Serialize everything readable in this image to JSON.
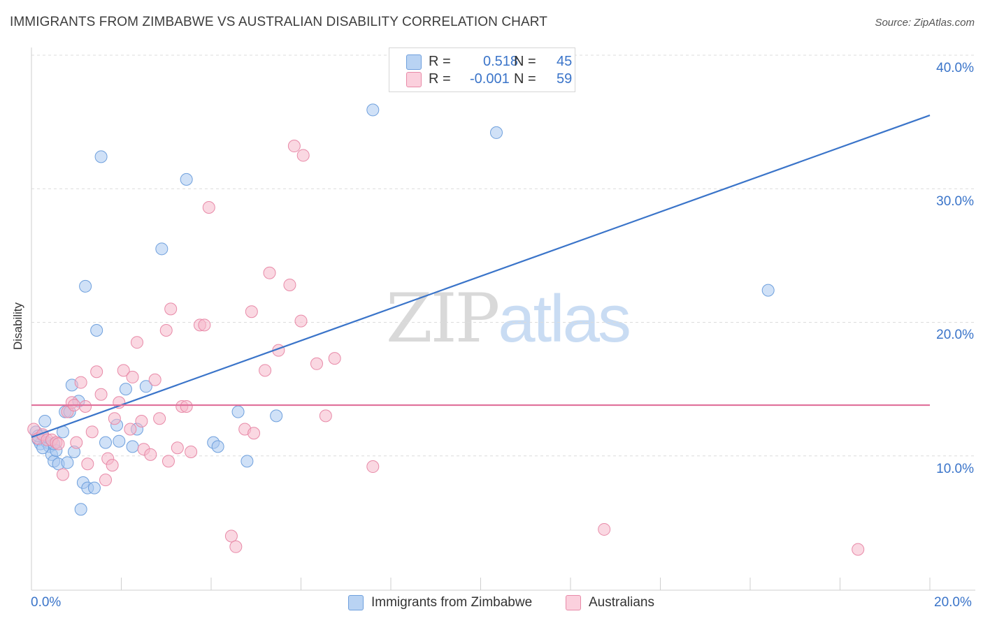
{
  "title": "IMMIGRANTS FROM ZIMBABWE VS AUSTRALIAN DISABILITY CORRELATION CHART",
  "source": "Source: ZipAtlas.com",
  "watermark": {
    "zip": "ZIP",
    "atlas": "atlas"
  },
  "legend": {
    "rows": [
      {
        "r_label": "R =",
        "r_value": "0.518",
        "n_label": "N =",
        "n_value": "45",
        "color": "#a9c8f0"
      },
      {
        "r_label": "R =",
        "r_value": "-0.001",
        "n_label": "N =",
        "n_value": "59",
        "color": "#f5b8cb"
      }
    ]
  },
  "bottom_legend": [
    {
      "label": "Immigrants from Zimbabwe",
      "color": "#a9c8f0"
    },
    {
      "label": "Australians",
      "color": "#f5b8cb"
    }
  ],
  "chart_data": {
    "type": "scatter",
    "title": "IMMIGRANTS FROM ZIMBABWE VS AUSTRALIAN DISABILITY CORRELATION CHART",
    "xlabel": "",
    "ylabel": "Disability",
    "xlim": [
      0,
      20
    ],
    "ylim": [
      0,
      40
    ],
    "x_ticks_labels": [
      "0.0%",
      "20.0%"
    ],
    "y_ticks": [
      10,
      20,
      30,
      40
    ],
    "y_ticks_labels": [
      "10.0%",
      "20.0%",
      "30.0%",
      "40.0%"
    ],
    "grid": "horizontal dashed",
    "series": [
      {
        "name": "Immigrants from Zimbabwe",
        "color": "#a9c8f0",
        "stroke": "#6fa0dd",
        "trend": {
          "x": [
            0,
            20
          ],
          "y": [
            11.4,
            35.5
          ],
          "color": "#3a74c9"
        },
        "points": [
          [
            0.1,
            11.8
          ],
          [
            0.15,
            11.2
          ],
          [
            0.2,
            10.9
          ],
          [
            0.25,
            11.5
          ],
          [
            0.3,
            12.6
          ],
          [
            0.35,
            11.0
          ],
          [
            0.4,
            10.7
          ],
          [
            0.45,
            10.1
          ],
          [
            0.5,
            9.6
          ],
          [
            0.55,
            10.4
          ],
          [
            0.6,
            9.4
          ],
          [
            0.7,
            11.8
          ],
          [
            0.75,
            13.3
          ],
          [
            0.8,
            9.5
          ],
          [
            0.85,
            13.3
          ],
          [
            0.9,
            15.3
          ],
          [
            0.95,
            10.3
          ],
          [
            1.05,
            14.1
          ],
          [
            1.15,
            8.0
          ],
          [
            1.2,
            22.7
          ],
          [
            1.25,
            7.6
          ],
          [
            1.4,
            7.6
          ],
          [
            1.45,
            19.4
          ],
          [
            1.55,
            32.4
          ],
          [
            1.65,
            11.0
          ],
          [
            1.9,
            12.3
          ],
          [
            1.95,
            11.1
          ],
          [
            2.1,
            15.0
          ],
          [
            2.25,
            10.7
          ],
          [
            2.35,
            12.0
          ],
          [
            2.55,
            15.2
          ],
          [
            2.9,
            25.5
          ],
          [
            3.45,
            30.7
          ],
          [
            4.05,
            11.0
          ],
          [
            4.15,
            10.7
          ],
          [
            4.6,
            13.3
          ],
          [
            4.8,
            9.6
          ],
          [
            5.45,
            13.0
          ],
          [
            7.6,
            35.9
          ],
          [
            10.35,
            34.2
          ],
          [
            16.4,
            22.4
          ],
          [
            0.15,
            11.5
          ],
          [
            0.25,
            10.6
          ],
          [
            0.5,
            10.9
          ],
          [
            1.1,
            6.0
          ]
        ]
      },
      {
        "name": "Australians",
        "color": "#f5b8cb",
        "stroke": "#e88aa8",
        "trend": {
          "x": [
            0,
            20
          ],
          "y": [
            13.8,
            13.8
          ],
          "color": "#e0709a"
        },
        "points": [
          [
            0.05,
            12.0
          ],
          [
            0.15,
            11.3
          ],
          [
            0.25,
            11.6
          ],
          [
            0.35,
            11.2
          ],
          [
            0.45,
            11.2
          ],
          [
            0.55,
            11.0
          ],
          [
            0.6,
            10.9
          ],
          [
            0.7,
            8.6
          ],
          [
            0.8,
            13.3
          ],
          [
            0.9,
            14.0
          ],
          [
            0.95,
            13.8
          ],
          [
            1.0,
            11.0
          ],
          [
            1.1,
            15.5
          ],
          [
            1.2,
            13.7
          ],
          [
            1.25,
            9.4
          ],
          [
            1.35,
            11.8
          ],
          [
            1.45,
            16.3
          ],
          [
            1.55,
            14.6
          ],
          [
            1.65,
            8.2
          ],
          [
            1.7,
            9.8
          ],
          [
            1.8,
            9.3
          ],
          [
            1.85,
            12.8
          ],
          [
            1.95,
            14.0
          ],
          [
            2.05,
            16.4
          ],
          [
            2.2,
            12.0
          ],
          [
            2.25,
            15.9
          ],
          [
            2.35,
            18.5
          ],
          [
            2.45,
            12.6
          ],
          [
            2.5,
            10.5
          ],
          [
            2.65,
            10.1
          ],
          [
            2.75,
            15.7
          ],
          [
            2.85,
            12.8
          ],
          [
            3.0,
            19.4
          ],
          [
            3.05,
            9.6
          ],
          [
            3.1,
            21.0
          ],
          [
            3.25,
            10.6
          ],
          [
            3.35,
            13.7
          ],
          [
            3.45,
            13.7
          ],
          [
            3.55,
            10.3
          ],
          [
            3.75,
            19.8
          ],
          [
            3.85,
            19.8
          ],
          [
            3.95,
            28.6
          ],
          [
            4.45,
            4.0
          ],
          [
            4.55,
            3.2
          ],
          [
            4.75,
            12.0
          ],
          [
            4.9,
            20.8
          ],
          [
            4.95,
            11.7
          ],
          [
            5.2,
            16.4
          ],
          [
            5.3,
            23.7
          ],
          [
            5.5,
            17.9
          ],
          [
            5.75,
            22.8
          ],
          [
            5.85,
            33.2
          ],
          [
            6.0,
            20.1
          ],
          [
            6.05,
            32.5
          ],
          [
            6.35,
            16.9
          ],
          [
            6.55,
            13.0
          ],
          [
            6.75,
            17.3
          ],
          [
            7.6,
            9.2
          ],
          [
            12.75,
            4.5
          ],
          [
            18.4,
            3.0
          ]
        ]
      }
    ]
  }
}
